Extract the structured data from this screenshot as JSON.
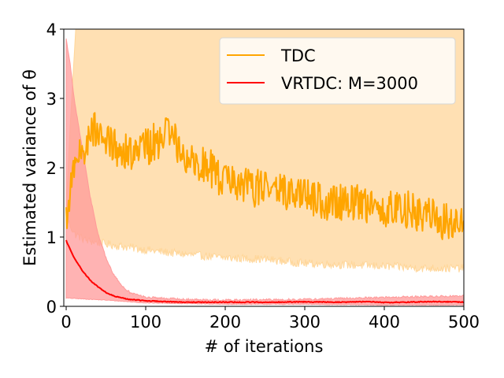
{
  "chart_data": {
    "type": "line",
    "xlabel": "# of iterations",
    "ylabel": "Estimated variance of θ",
    "xlim": [
      -3,
      500
    ],
    "ylim": [
      0,
      4
    ],
    "xticks": [
      0,
      100,
      200,
      300,
      400,
      500
    ],
    "yticks": [
      0,
      1,
      2,
      3,
      4
    ],
    "grid": false,
    "legend_position": "top-right",
    "series": [
      {
        "name": "TDC",
        "color": "#FFA500",
        "band_color": "#FFD699",
        "mean_keypoints": [
          [
            0,
            1.2
          ],
          [
            8,
            1.9
          ],
          [
            20,
            2.2
          ],
          [
            35,
            2.6
          ],
          [
            50,
            2.4
          ],
          [
            70,
            2.2
          ],
          [
            100,
            2.3
          ],
          [
            130,
            2.5
          ],
          [
            150,
            2.2
          ],
          [
            180,
            2.0
          ],
          [
            200,
            1.8
          ],
          [
            230,
            1.7
          ],
          [
            260,
            1.7
          ],
          [
            290,
            1.6
          ],
          [
            330,
            1.5
          ],
          [
            370,
            1.5
          ],
          [
            400,
            1.4
          ],
          [
            430,
            1.4
          ],
          [
            460,
            1.3
          ],
          [
            480,
            1.2
          ],
          [
            500,
            1.2
          ]
        ],
        "mean_noise": 0.28,
        "lower_keypoints": [
          [
            0,
            1.3
          ],
          [
            10,
            1.05
          ],
          [
            25,
            0.95
          ],
          [
            50,
            0.9
          ],
          [
            80,
            0.85
          ],
          [
            110,
            0.8
          ],
          [
            150,
            0.75
          ],
          [
            200,
            0.7
          ],
          [
            250,
            0.68
          ],
          [
            300,
            0.62
          ],
          [
            350,
            0.6
          ],
          [
            400,
            0.58
          ],
          [
            450,
            0.55
          ],
          [
            500,
            0.55
          ]
        ],
        "lower_noise": 0.06,
        "upper_keypoints": [
          [
            0,
            1.4
          ],
          [
            5,
            2.6
          ],
          [
            12,
            4.0
          ],
          [
            500,
            4.0
          ]
        ],
        "upper_noise": 0.0
      },
      {
        "name": "VRTDC: M=3000",
        "color": "#FF0000",
        "band_color": "#FF9999",
        "mean_keypoints": [
          [
            0,
            0.95
          ],
          [
            10,
            0.7
          ],
          [
            20,
            0.52
          ],
          [
            30,
            0.38
          ],
          [
            40,
            0.28
          ],
          [
            50,
            0.2
          ],
          [
            60,
            0.15
          ],
          [
            70,
            0.12
          ],
          [
            80,
            0.1
          ],
          [
            100,
            0.08
          ],
          [
            120,
            0.07
          ],
          [
            150,
            0.06
          ],
          [
            200,
            0.06
          ],
          [
            250,
            0.06
          ],
          [
            300,
            0.065
          ],
          [
            350,
            0.06
          ],
          [
            380,
            0.07
          ],
          [
            400,
            0.055
          ],
          [
            430,
            0.06
          ],
          [
            460,
            0.07
          ],
          [
            500,
            0.06
          ]
        ],
        "mean_noise": 0.006,
        "lower_keypoints": [
          [
            0,
            0.12
          ],
          [
            50,
            0.09
          ],
          [
            100,
            0.05
          ],
          [
            200,
            0.03
          ],
          [
            300,
            0.03
          ],
          [
            400,
            0.02
          ],
          [
            500,
            0.02
          ]
        ],
        "lower_noise": 0.005,
        "upper_keypoints": [
          [
            0,
            3.85
          ],
          [
            5,
            3.5
          ],
          [
            10,
            3.0
          ],
          [
            20,
            2.3
          ],
          [
            30,
            1.6
          ],
          [
            40,
            1.05
          ],
          [
            50,
            0.7
          ],
          [
            60,
            0.45
          ],
          [
            70,
            0.3
          ],
          [
            80,
            0.2
          ],
          [
            100,
            0.13
          ],
          [
            150,
            0.1
          ],
          [
            200,
            0.09
          ],
          [
            300,
            0.1
          ],
          [
            400,
            0.13
          ],
          [
            450,
            0.14
          ],
          [
            500,
            0.15
          ]
        ],
        "upper_noise": 0.015
      }
    ]
  }
}
